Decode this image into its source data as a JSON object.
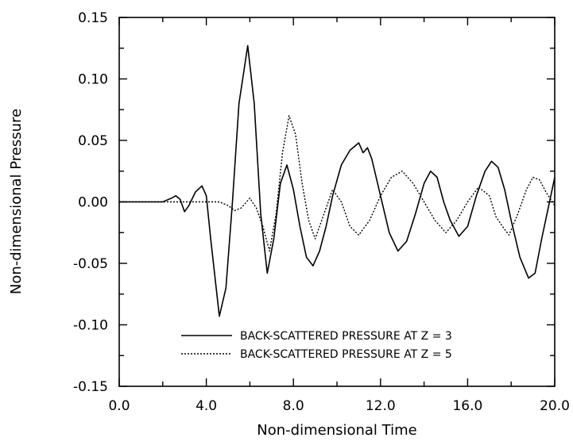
{
  "chart_data": {
    "type": "line",
    "title": "",
    "xlabel": "Non-dimensional Time",
    "ylabel": "Non-dimensional Pressure",
    "xlim": [
      0.0,
      20.0
    ],
    "ylim": [
      -0.15,
      0.15
    ],
    "xticks": [
      "0.0",
      "4.0",
      "8.0",
      "12.0",
      "16.0",
      "20.0"
    ],
    "yticks": [
      "0.15",
      "0.10",
      "0.05",
      "0.00",
      "-0.05",
      "-0.10",
      "-0.15"
    ],
    "grid": false,
    "legend_position": "bottom-center",
    "series": [
      {
        "name": "BACK-SCATTERED PRESSURE AT Z = 3",
        "style": "solid",
        "x": [
          0.0,
          2.0,
          2.4,
          2.6,
          2.8,
          3.0,
          3.2,
          3.5,
          3.8,
          4.0,
          4.2,
          4.6,
          4.9,
          5.2,
          5.5,
          5.9,
          6.2,
          6.5,
          6.8,
          7.1,
          7.4,
          7.7,
          8.0,
          8.3,
          8.6,
          8.9,
          9.2,
          9.5,
          9.8,
          10.2,
          10.6,
          11.0,
          11.2,
          11.4,
          11.6,
          12.0,
          12.4,
          12.8,
          13.2,
          13.6,
          14.0,
          14.3,
          14.6,
          14.9,
          15.2,
          15.6,
          16.0,
          16.4,
          16.8,
          17.1,
          17.4,
          17.7,
          18.0,
          18.4,
          18.8,
          19.1,
          19.4,
          19.7,
          20.0
        ],
        "y": [
          0.0,
          0.0,
          0.003,
          0.005,
          0.002,
          -0.008,
          -0.003,
          0.008,
          0.013,
          0.005,
          -0.03,
          -0.093,
          -0.07,
          0.0,
          0.08,
          0.127,
          0.08,
          -0.01,
          -0.058,
          -0.03,
          0.015,
          0.03,
          0.01,
          -0.02,
          -0.045,
          -0.052,
          -0.04,
          -0.02,
          0.005,
          0.03,
          0.042,
          0.048,
          0.04,
          0.044,
          0.035,
          0.005,
          -0.025,
          -0.04,
          -0.032,
          -0.01,
          0.015,
          0.025,
          0.02,
          0.0,
          -0.015,
          -0.028,
          -0.02,
          0.005,
          0.025,
          0.033,
          0.028,
          0.01,
          -0.015,
          -0.045,
          -0.062,
          -0.058,
          -0.03,
          -0.005,
          0.02
        ]
      },
      {
        "name": "BACK-SCATTERED PRESSURE AT Z = 5",
        "style": "dotted",
        "x": [
          0.0,
          4.0,
          4.6,
          5.0,
          5.3,
          5.6,
          6.0,
          6.3,
          6.6,
          6.9,
          7.2,
          7.5,
          7.8,
          8.1,
          8.4,
          8.7,
          9.0,
          9.4,
          9.8,
          10.2,
          10.6,
          11.0,
          11.5,
          12.0,
          12.5,
          13.0,
          13.5,
          14.0,
          14.5,
          15.0,
          15.5,
          16.0,
          16.5,
          17.0,
          17.3,
          17.6,
          17.9,
          18.3,
          18.7,
          19.0,
          19.3,
          19.6,
          20.0
        ],
        "y": [
          0.0,
          0.0,
          0.0,
          -0.003,
          -0.007,
          -0.005,
          0.003,
          -0.005,
          -0.02,
          -0.04,
          -0.01,
          0.04,
          0.07,
          0.055,
          0.015,
          -0.015,
          -0.03,
          -0.01,
          0.01,
          0.0,
          -0.02,
          -0.027,
          -0.015,
          0.005,
          0.02,
          0.025,
          0.015,
          0.0,
          -0.015,
          -0.025,
          -0.015,
          0.0,
          0.012,
          0.005,
          -0.012,
          -0.02,
          -0.027,
          -0.01,
          0.01,
          0.02,
          0.018,
          0.008,
          -0.003
        ]
      }
    ]
  }
}
